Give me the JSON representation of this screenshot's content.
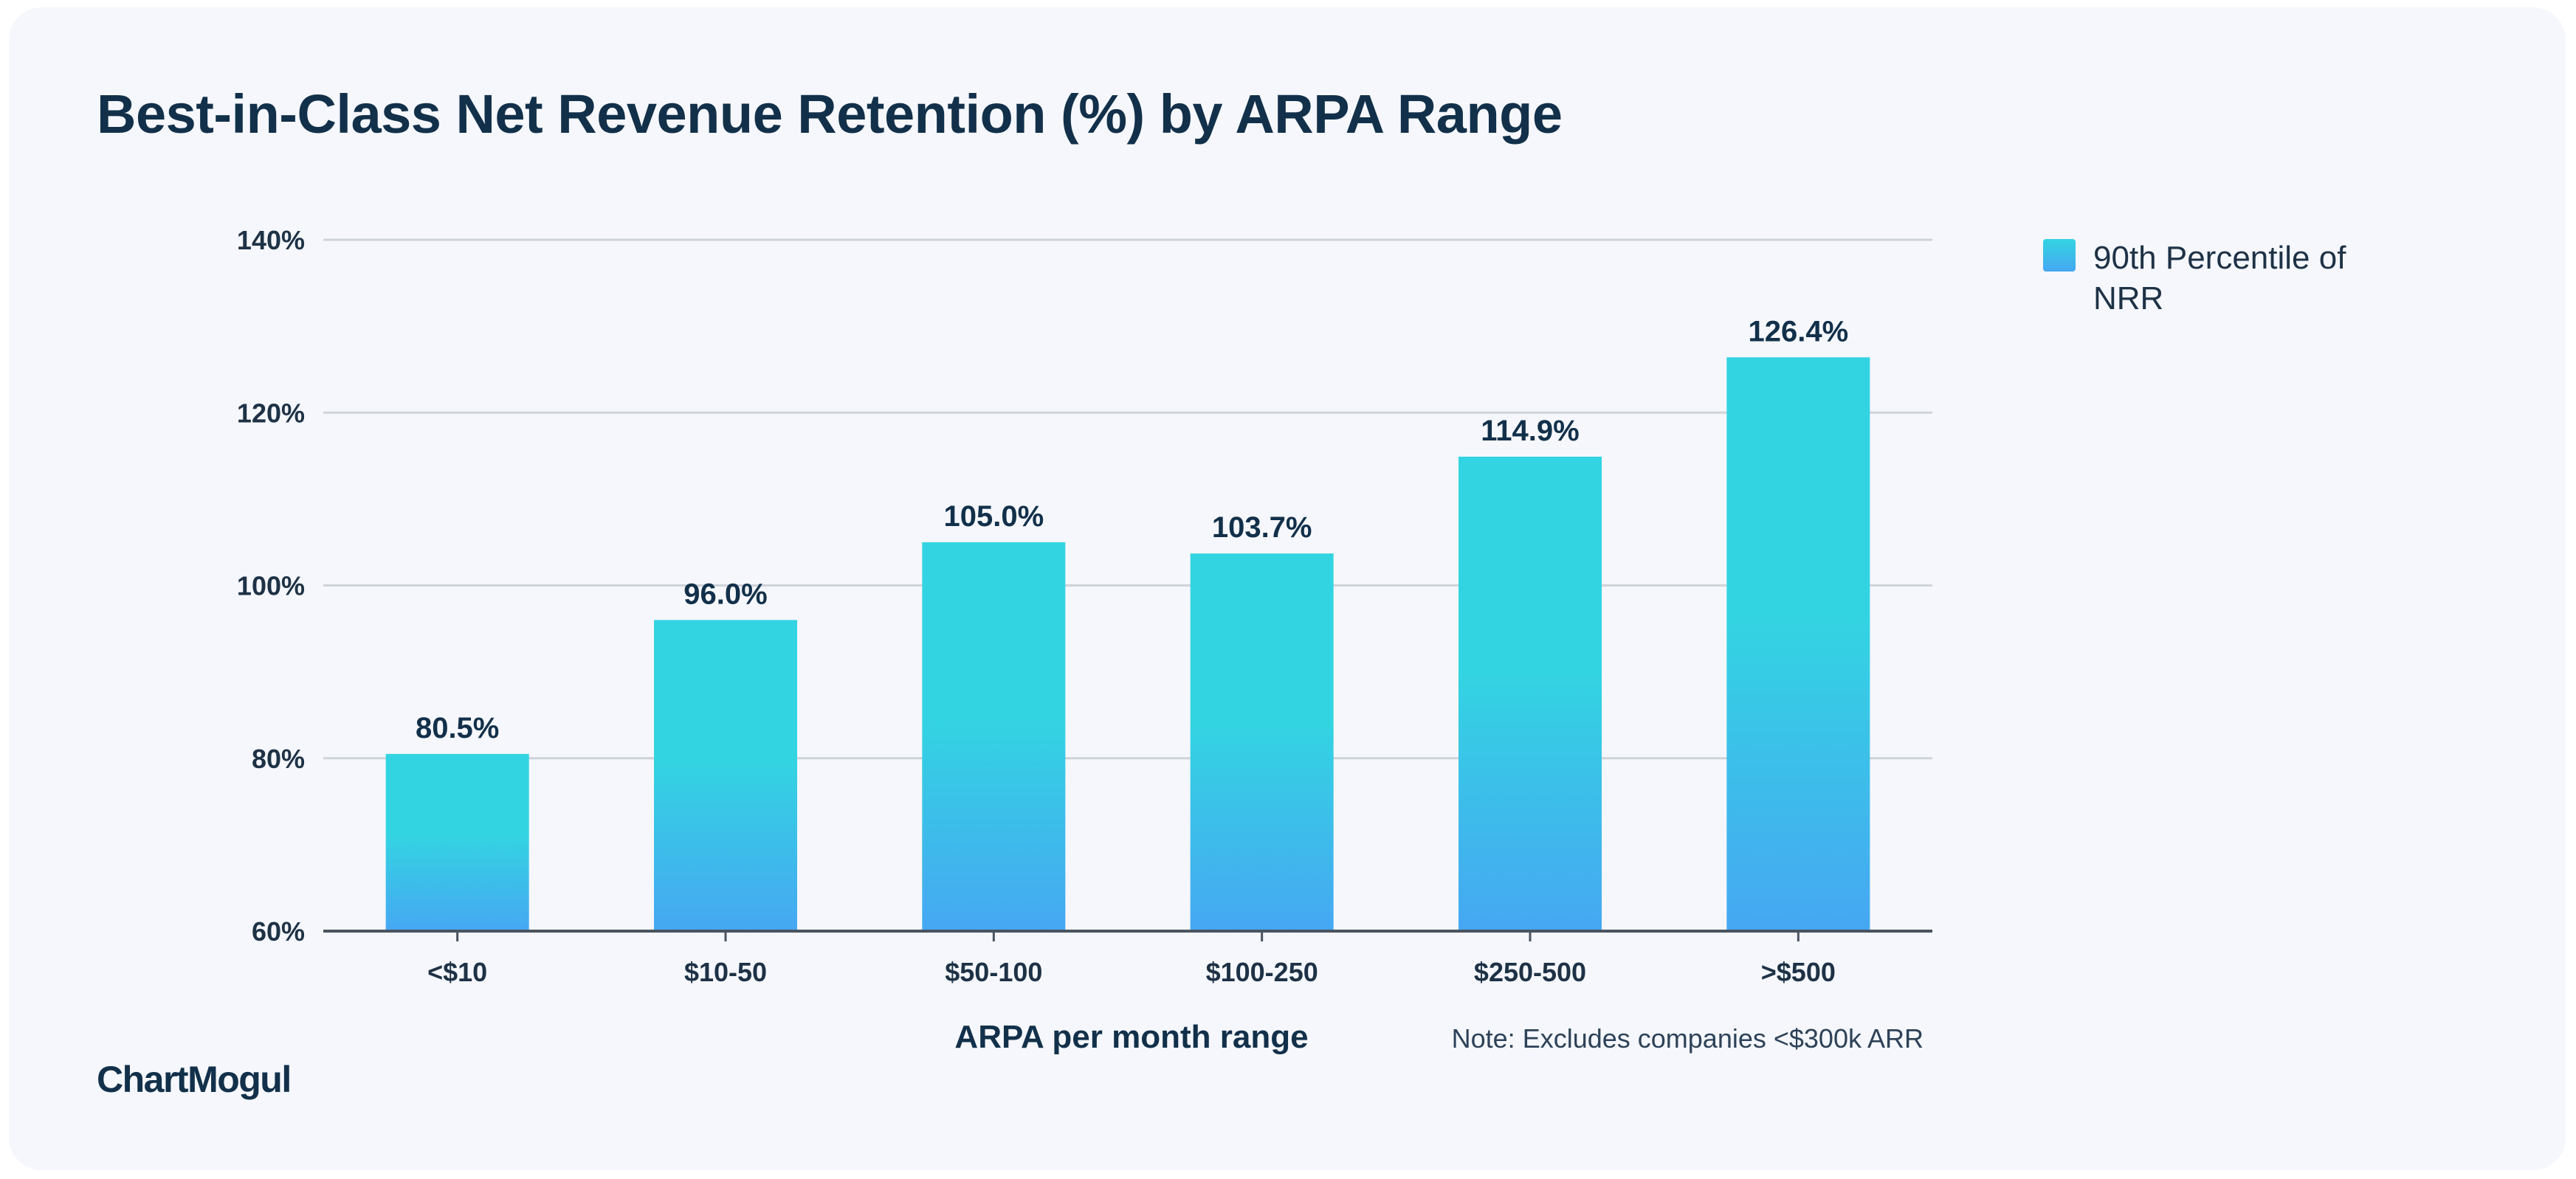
{
  "chart_data": {
    "type": "bar",
    "title": "Best-in-Class Net Revenue Retention (%) by ARPA Range",
    "categories": [
      "<$10",
      "$10-50",
      "$50-100",
      "$100-250",
      "$250-500",
      ">$500"
    ],
    "series": [
      {
        "name": "90th Percentile of NRR",
        "values": [
          80.5,
          96.0,
          105.0,
          103.7,
          114.9,
          126.4
        ],
        "value_labels": [
          "80.5%",
          "96.0%",
          "105.0%",
          "103.7%",
          "114.9%",
          "126.4%"
        ]
      }
    ],
    "xlabel": "ARPA per month range",
    "ylabel": "",
    "ylim": [
      60,
      140
    ],
    "yticks": [
      60,
      80,
      100,
      120,
      140
    ],
    "ytick_labels": [
      "60%",
      "80%",
      "100%",
      "120%",
      "140%"
    ],
    "grid": true,
    "legend_position": "right",
    "legend_label": "90th Percentile of NRR",
    "note": "Note: Excludes companies <$300k ARR",
    "colors": {
      "bar_top": "#33d4e2",
      "bar_bottom": "#46a7f2",
      "grid": "#cfd3da",
      "axis": "#4a5460",
      "text_dark": "#12304a",
      "background": "#f5f7fc"
    }
  },
  "branding": {
    "logo_text": "ChartMogul"
  }
}
